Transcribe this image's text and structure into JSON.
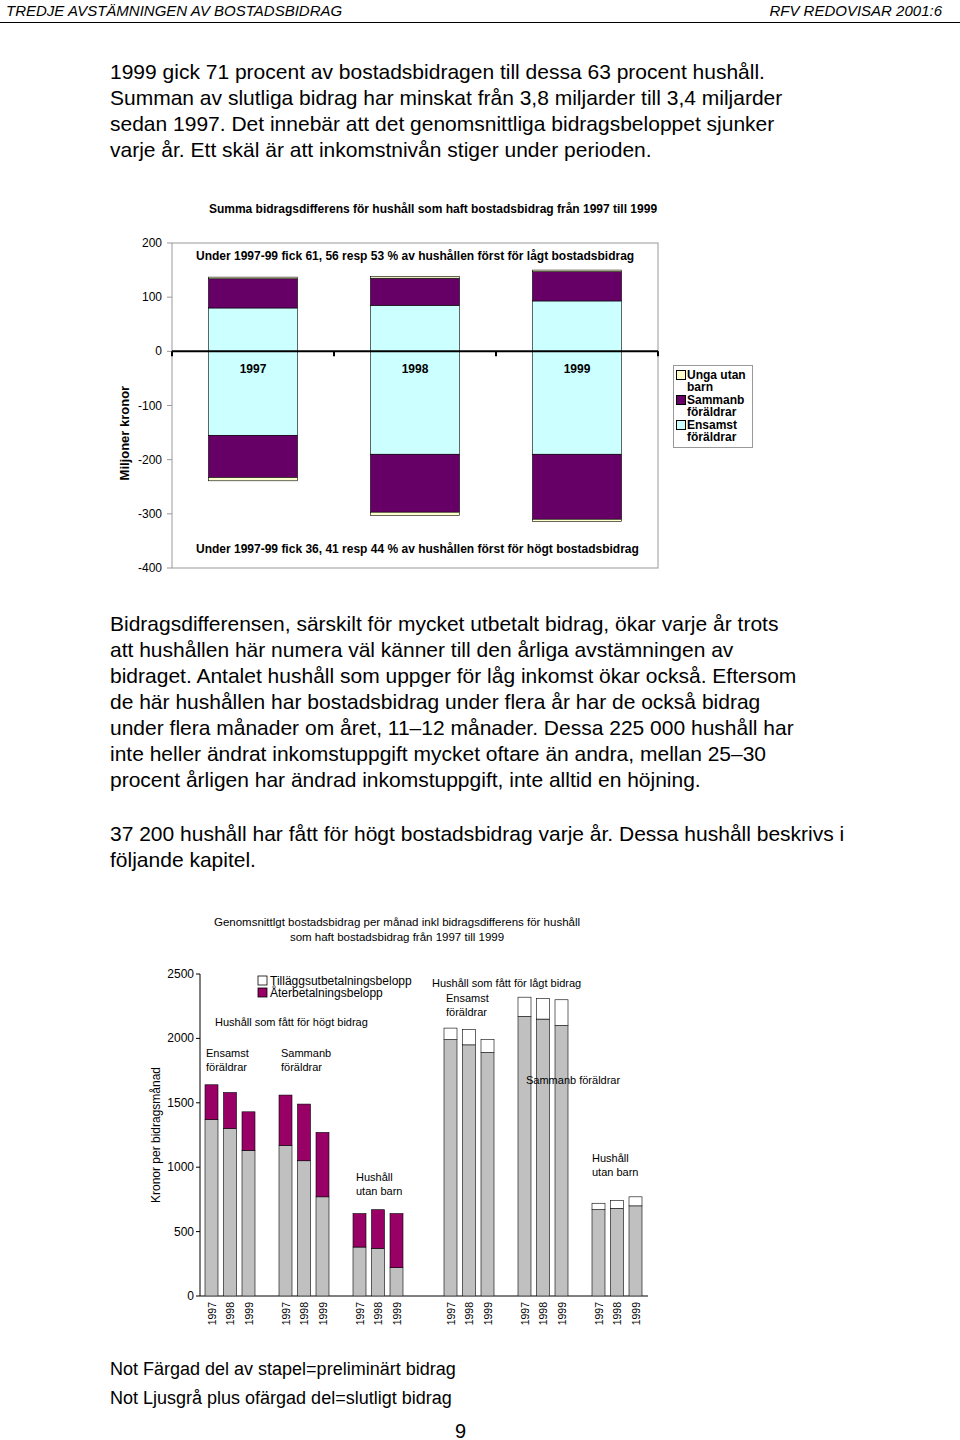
{
  "header": {
    "left": "TREDJE AVSTÄMNINGEN AV BOSTADSBIDRAG",
    "right": "RFV REDOVISAR 2001:6"
  },
  "paragraphs": [
    [
      "1999 gick 71 procent av bostadsbidragen till dessa 63 procent hushåll.",
      "Summan av slutliga bidrag har minskat från 3,8 miljarder till 3,4 miljarder",
      "sedan 1997. Det innebär att det genomsnittliga bidragsbeloppet sjunker",
      "varje år. Ett skäl är att inkomstnivån stiger under perioden."
    ],
    [
      "Bidragsdifferensen, särskilt för mycket utbetalt bidrag, ökar varje år trots",
      "att hushållen här numera väl känner till den årliga avstämningen av",
      "bidraget. Antalet hushåll som uppger för låg inkomst ökar också. Eftersom",
      "de här hushållen har bostadsbidrag under flera år har de också bidrag",
      "under flera månader om året, 11–12 månader. Dessa 225 000 hushåll har",
      "inte heller ändrat inkomstuppgift mycket oftare än andra, mellan 25–30",
      "procent årligen har ändrad inkomstuppgift, inte alltid en höjning."
    ],
    [
      "37 200 hushåll har fått för högt bostadsbidrag varje år. Dessa hushåll beskrivs i",
      "följande kapitel."
    ]
  ],
  "chart_data": [
    {
      "type": "bar",
      "stacked": true,
      "title": "Summa bidragsdifferens för hushåll som haft bostadsbidrag från 1997 till 1999",
      "y_label": "Miljoner kronor",
      "categories": [
        "1997",
        "1998",
        "1999"
      ],
      "series": [
        {
          "name": "Unga utan barn",
          "color": "#ffffcc",
          "values": [
            3,
            3,
            3
          ],
          "negative_values": [
            -6,
            -6,
            -4
          ]
        },
        {
          "name": "Sammanb föräldrar",
          "color": "#660066",
          "values": [
            54,
            50,
            54
          ],
          "negative_values": [
            -78,
            -107,
            -120
          ]
        },
        {
          "name": "Ensamst föräldrar",
          "color": "#ccffff",
          "values": [
            80,
            85,
            93
          ],
          "negative_values": [
            -155,
            -190,
            -190
          ]
        }
      ],
      "ylim": [
        -400,
        200
      ],
      "yticks": [
        -400,
        -300,
        -200,
        -100,
        0,
        100,
        200
      ],
      "annotations": [
        "Under 1997-99 fick 61, 56 resp 53 % av hushållen först för lågt bostadsbidrag",
        "Under 1997-99 fick 36, 41 resp 44 % av hushållen först för högt bostadsbidrag"
      ],
      "legend": "right"
    },
    {
      "type": "bar",
      "stacked": true,
      "title": [
        "Genomsnittlgt bostadsbidrag per månad inkl bidragsdifferens för hushåll",
        "som haft bostadsbidrag från 1997 till 1999"
      ],
      "y_label": "Kronor per bidragsmånad",
      "categories": [
        "1997",
        "1998",
        "1999",
        "1997",
        "1998",
        "1999",
        "1997",
        "1998",
        "1999",
        "1997",
        "1998",
        "1999",
        "1997",
        "1998",
        "1999",
        "1997",
        "1998",
        "1999"
      ],
      "series": [
        {
          "color": "#c0c0c0",
          "values": [
            1370,
            1300,
            1130,
            1170,
            1050,
            770,
            380,
            370,
            220,
            1990,
            1950,
            1890,
            2170,
            2150,
            2100,
            670,
            680,
            700
          ]
        },
        {
          "name": "Tilläggsutbetalningsbelopp",
          "color": "#ffffff",
          "values": [
            null,
            null,
            null,
            null,
            null,
            null,
            null,
            null,
            null,
            90,
            120,
            100,
            150,
            160,
            200,
            50,
            60,
            70
          ]
        },
        {
          "name": "Återbetalningsbelopp",
          "color": "#990066",
          "values": [
            270,
            280,
            300,
            390,
            440,
            500,
            260,
            300,
            420,
            null,
            null,
            null,
            null,
            null,
            null,
            null,
            null,
            null
          ]
        }
      ],
      "ylim": [
        0,
        2500
      ],
      "yticks": [
        0,
        500,
        1000,
        1500,
        2000,
        2500
      ],
      "annotations": [
        [
          "Hushåll som fått för högt bidrag"
        ],
        [
          "Ensamst",
          "föräldrar"
        ],
        [
          "Sammanb",
          "föräldrar"
        ],
        [
          "Hushåll",
          "utan barn"
        ],
        [
          "Hushåll som fått för lågt bidrag"
        ],
        [
          "Ensamst",
          "föräldrar"
        ],
        [
          "Sammanb föräldrar"
        ],
        [
          "Hushåll",
          "utan barn"
        ]
      ],
      "legend": "top"
    }
  ],
  "notes": [
    "Not Färgad del av stapel=preliminärt bidrag",
    "Not Ljusgrå plus ofärgad del=slutligt bidrag"
  ],
  "page_number": 9
}
